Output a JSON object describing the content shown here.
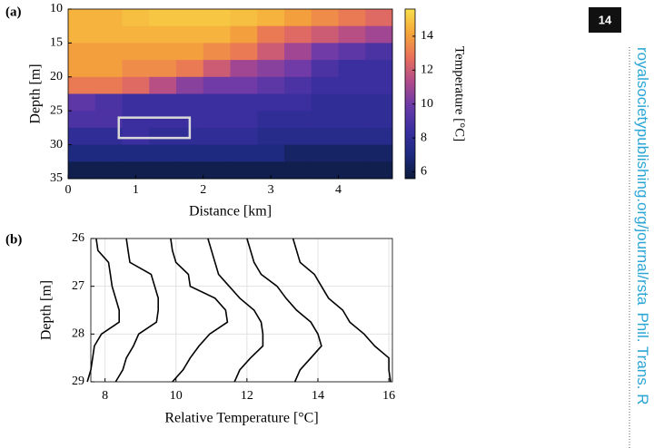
{
  "page": {
    "number": "14",
    "journal": "royalsocietypublishing.org/journal/rsta",
    "journal_name": "Phil. Trans. R"
  },
  "chart_data": [
    {
      "type": "heatmap",
      "panel": "(a)",
      "xlabel": "Distance [km]",
      "ylabel": "Depth [m]",
      "colorbar_label": "Temperature [°C]",
      "x": [
        0.2,
        0.6,
        1.0,
        1.4,
        1.8,
        2.2,
        2.6,
        3.0,
        3.4,
        3.8,
        4.2,
        4.6
      ],
      "y": [
        11.25,
        13.75,
        16.25,
        18.75,
        21.25,
        23.75,
        26.25,
        28.75,
        31.25,
        33.75
      ],
      "z": [
        [
          14.5,
          14.5,
          14.8,
          15,
          15,
          15,
          14.8,
          14.5,
          14,
          13.5,
          13,
          12.5
        ],
        [
          14.5,
          14.5,
          14.5,
          14.5,
          14.5,
          14.5,
          14,
          13,
          12.5,
          12,
          11.5,
          11
        ],
        [
          14,
          14,
          14,
          14,
          14,
          13.5,
          13,
          12,
          11,
          10,
          9.5,
          9
        ],
        [
          14,
          14,
          13.5,
          13.5,
          13,
          12,
          11,
          10.5,
          10,
          9,
          8.5,
          8.5
        ],
        [
          13,
          13,
          12.5,
          11.5,
          10.5,
          10,
          10,
          9.5,
          9,
          8.5,
          8.5,
          8.5
        ],
        [
          9.5,
          9,
          8.5,
          8.5,
          8.5,
          8.5,
          8.5,
          8.5,
          8.5,
          8,
          8,
          8
        ],
        [
          9,
          9,
          8.5,
          8.5,
          8.5,
          8.5,
          8.5,
          8,
          8,
          8,
          8,
          8
        ],
        [
          8,
          8,
          8.5,
          8,
          8,
          8,
          8,
          7.5,
          7.5,
          7.5,
          7.5,
          7.5
        ],
        [
          7,
          7,
          7,
          7,
          7,
          7,
          7,
          7,
          6.5,
          6.5,
          6.5,
          6.5
        ],
        [
          6,
          6,
          6,
          6,
          6,
          6,
          6,
          6,
          6,
          6,
          6,
          6
        ]
      ],
      "xlim": [
        0,
        4.8
      ],
      "xticks": [
        0,
        1,
        2,
        3,
        4
      ],
      "ylim": [
        35,
        10
      ],
      "yticks": [
        10,
        15,
        20,
        25,
        30,
        35
      ],
      "clim": [
        5.6,
        15.6
      ],
      "cticks": [
        6,
        8,
        10,
        12,
        14
      ],
      "colormap": [
        "#0b1b3a",
        "#1d2a80",
        "#3a2fa0",
        "#6a3aa8",
        "#b04a8c",
        "#e8705a",
        "#f5a53a",
        "#f9e04a"
      ],
      "highlight": {
        "x": [
          0.75,
          1.8
        ],
        "y": [
          26,
          29
        ],
        "color": "#d8d8d8"
      }
    },
    {
      "type": "profile",
      "panel": "(b)",
      "xlabel": "Relative Temperature [°C]",
      "ylabel": "Depth [m]",
      "color": "#000000",
      "grid": true,
      "depths": [
        26,
        26.25,
        26.5,
        26.75,
        27,
        27.25,
        27.5,
        27.75,
        28,
        28.25,
        28.5,
        28.75,
        29
      ],
      "series": [
        {
          "values": [
            7.75,
            7.8,
            8.1,
            8.15,
            8.2,
            8.3,
            8.4,
            8.4,
            7.9,
            7.7,
            7.65,
            7.6,
            7.5
          ]
        },
        {
          "values": [
            8.6,
            8.65,
            8.7,
            9.3,
            9.4,
            9.5,
            9.5,
            9.45,
            8.95,
            8.8,
            8.6,
            8.5,
            8.3
          ]
        },
        {
          "values": [
            9.85,
            9.9,
            10.0,
            10.35,
            10.4,
            11.1,
            11.4,
            11.45,
            10.95,
            10.65,
            10.4,
            10.2,
            9.9
          ]
        },
        {
          "values": [
            10.9,
            11.0,
            11.1,
            11.2,
            11.5,
            11.8,
            12.2,
            12.4,
            12.45,
            12.45,
            12.1,
            11.8,
            11.65
          ]
        },
        {
          "values": [
            12.0,
            12.1,
            12.2,
            12.4,
            12.85,
            13.1,
            13.4,
            13.8,
            14.0,
            14.1,
            13.8,
            13.5,
            13.35
          ]
        },
        {
          "values": [
            13.3,
            13.4,
            13.5,
            13.9,
            14.1,
            14.3,
            14.7,
            14.9,
            15.3,
            15.6,
            16.0,
            16.0,
            16.05
          ]
        }
      ],
      "xlim": [
        7.6,
        16.1
      ],
      "xticks": [
        8,
        10,
        12,
        14,
        16
      ],
      "ylim": [
        29,
        26
      ],
      "yticks": [
        26,
        27,
        28,
        29
      ]
    }
  ]
}
